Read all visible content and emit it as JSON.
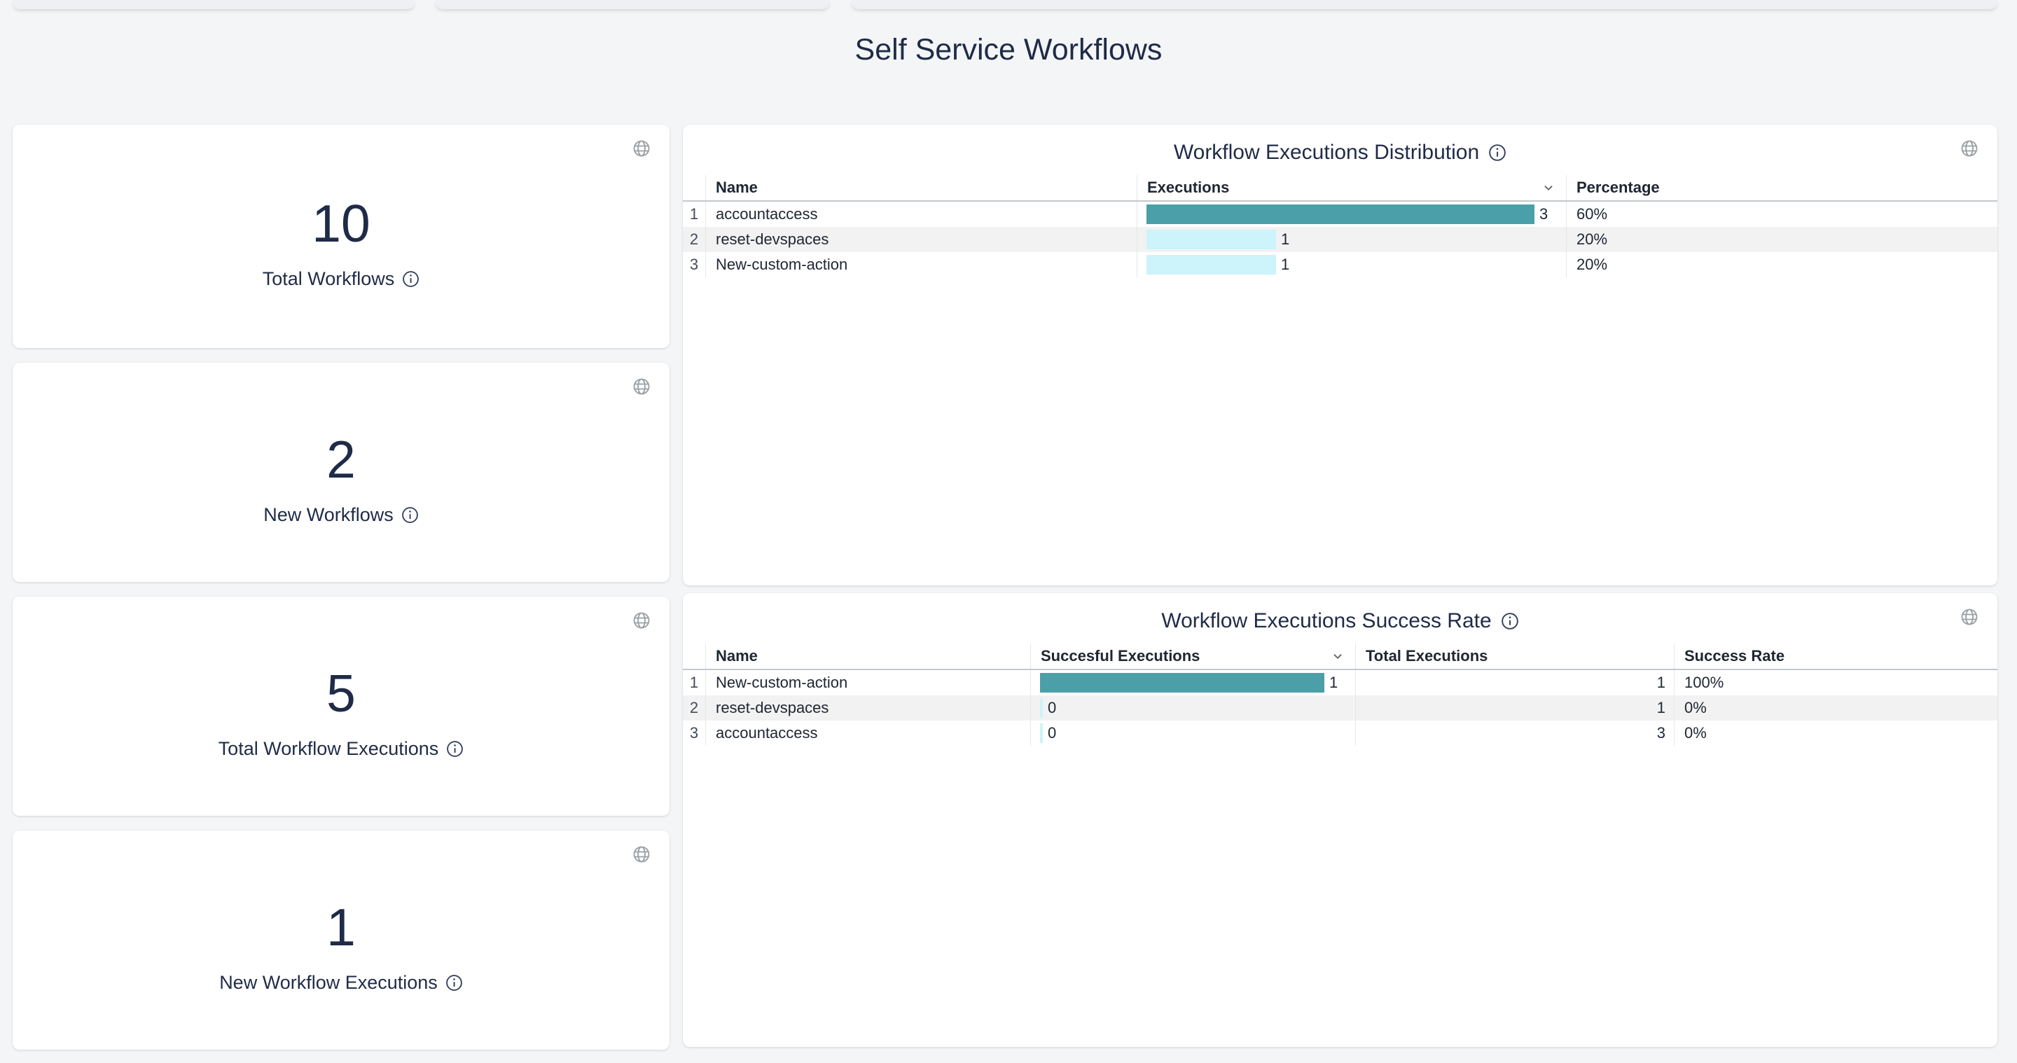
{
  "page": {
    "title": "Self Service Workflows"
  },
  "colors": {
    "bar_max": "#4A9FA8",
    "bar_other": "#CCF4FA",
    "row_stripe": "#f2f2f2",
    "title_text": "#1f2b47",
    "card_background": "#ffffff",
    "page_background": "#f3f5f7",
    "icon_gray": "#9aa0a6"
  },
  "icons": {
    "card_action": "globe-icon",
    "metric_info": "info-icon",
    "sort": "chevron-down-icon"
  },
  "stat_cards": [
    {
      "value": "10",
      "label": "Total Workflows"
    },
    {
      "value": "2",
      "label": "New Workflows"
    },
    {
      "value": "5",
      "label": "Total Workflow Executions"
    },
    {
      "value": "1",
      "label": "New Workflow Executions"
    }
  ],
  "distribution_table": {
    "title": "Workflow Executions Distribution",
    "columns": [
      "Name",
      "Executions",
      "Percentage"
    ],
    "sorted_column": "Executions",
    "max_executions": 3,
    "rows": [
      {
        "index": "1",
        "name": "accountaccess",
        "executions": 3,
        "percentage": "60%"
      },
      {
        "index": "2",
        "name": "reset-devspaces",
        "executions": 1,
        "percentage": "20%"
      },
      {
        "index": "3",
        "name": "New-custom-action",
        "executions": 1,
        "percentage": "20%"
      }
    ]
  },
  "success_table": {
    "title": "Workflow Executions Success Rate",
    "columns": [
      "Name",
      "Succesful Executions",
      "Total Executions",
      "Success Rate"
    ],
    "sorted_column": "Succesful Executions",
    "max_successful": 1,
    "rows": [
      {
        "index": "1",
        "name": "New-custom-action",
        "successful": 1,
        "total": "1",
        "rate": "100%"
      },
      {
        "index": "2",
        "name": "reset-devspaces",
        "successful": 0,
        "total": "1",
        "rate": "0%"
      },
      {
        "index": "3",
        "name": "accountaccess",
        "successful": 0,
        "total": "3",
        "rate": "0%"
      }
    ]
  },
  "chart_data": [
    {
      "type": "bar",
      "title": "Workflow Executions Distribution",
      "categories": [
        "accountaccess",
        "reset-devspaces",
        "New-custom-action"
      ],
      "values": [
        3,
        1,
        1
      ],
      "percentages": [
        "60%",
        "20%",
        "20%"
      ],
      "orientation": "horizontal",
      "xlim": [
        0,
        3
      ]
    },
    {
      "type": "bar",
      "title": "Workflow Executions Success Rate",
      "categories": [
        "New-custom-action",
        "reset-devspaces",
        "accountaccess"
      ],
      "series": [
        {
          "name": "Succesful Executions",
          "values": [
            1,
            0,
            0
          ]
        },
        {
          "name": "Total Executions",
          "values": [
            1,
            1,
            3
          ]
        },
        {
          "name": "Success Rate",
          "values": [
            "100%",
            "0%",
            "0%"
          ]
        }
      ],
      "orientation": "horizontal",
      "xlim": [
        0,
        1
      ]
    }
  ]
}
